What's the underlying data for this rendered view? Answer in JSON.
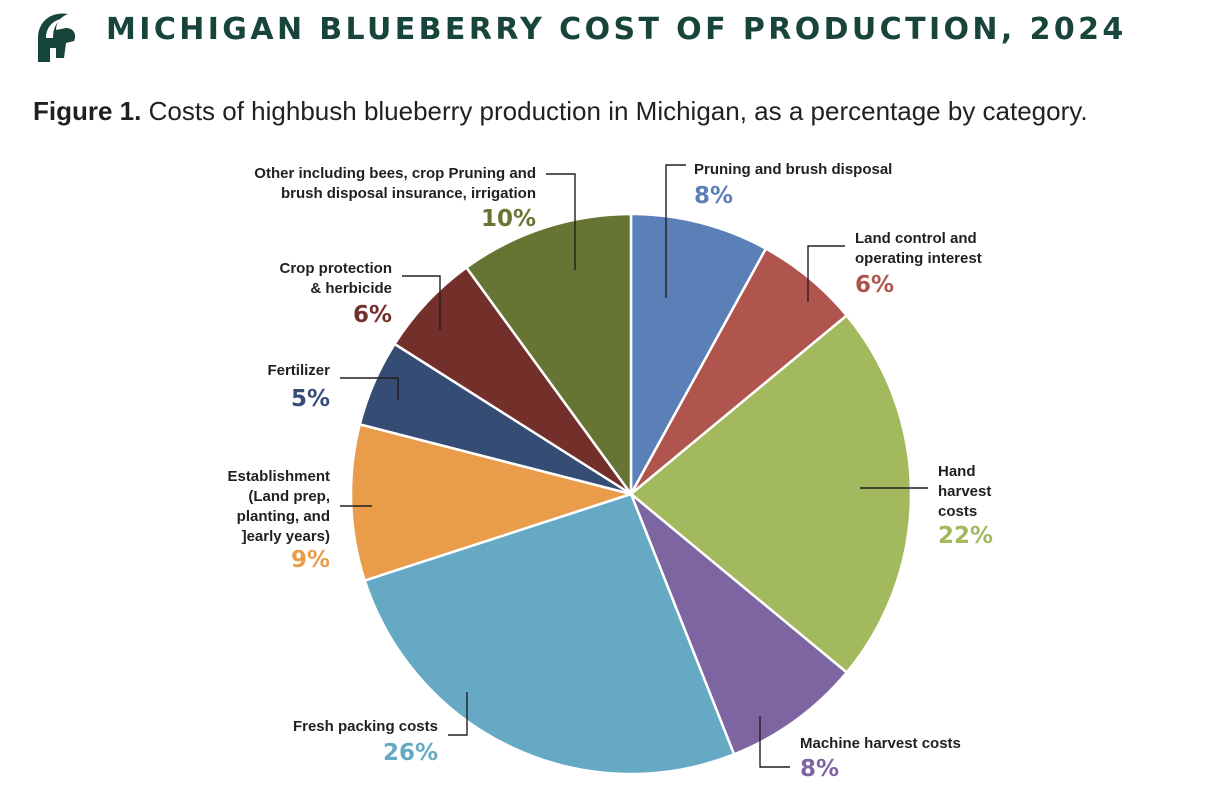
{
  "header": {
    "title": "MICHIGAN BLUEBERRY COST OF PRODUCTION, 2024",
    "logo_icon": "spartan-helmet-icon"
  },
  "figure": {
    "number": "Figure 1.",
    "caption": "Costs of highbush blueberry production in Michigan, as a percentage by category."
  },
  "colors": {
    "brand": "#18453b"
  },
  "chart_data": {
    "type": "pie",
    "title": "",
    "slices": [
      {
        "label_lines": [
          "Pruning and brush disposal"
        ],
        "value": 8,
        "value_label": "8%",
        "color": "#5b80b8"
      },
      {
        "label_lines": [
          "Land control and",
          "operating interest"
        ],
        "value": 6,
        "value_label": "6%",
        "color": "#b0554e"
      },
      {
        "label_lines": [
          "Hand",
          "harvest",
          "costs"
        ],
        "value": 22,
        "value_label": "22%",
        "color": "#a3b95e"
      },
      {
        "label_lines": [
          "Machine harvest costs"
        ],
        "value": 8,
        "value_label": "8%",
        "color": "#7d65a1"
      },
      {
        "label_lines": [
          "Fresh packing costs"
        ],
        "value": 26,
        "value_label": "26%",
        "color": "#65a9c4"
      },
      {
        "label_lines": [
          "Establishment",
          "(Land prep,",
          "planting, and",
          "]early years)"
        ],
        "value": 9,
        "value_label": "9%",
        "color": "#e99c4a"
      },
      {
        "label_lines": [
          "Fertilizer"
        ],
        "value": 5,
        "value_label": "5%",
        "color": "#354d75"
      },
      {
        "label_lines": [
          "Crop protection",
          "& herbicide"
        ],
        "value": 6,
        "value_label": "6%",
        "color": "#73302b"
      },
      {
        "label_lines": [
          "Other including bees, crop Pruning and",
          "brush disposal insurance, irrigation"
        ],
        "value": 10,
        "value_label": "10%",
        "color": "#677534"
      }
    ]
  }
}
